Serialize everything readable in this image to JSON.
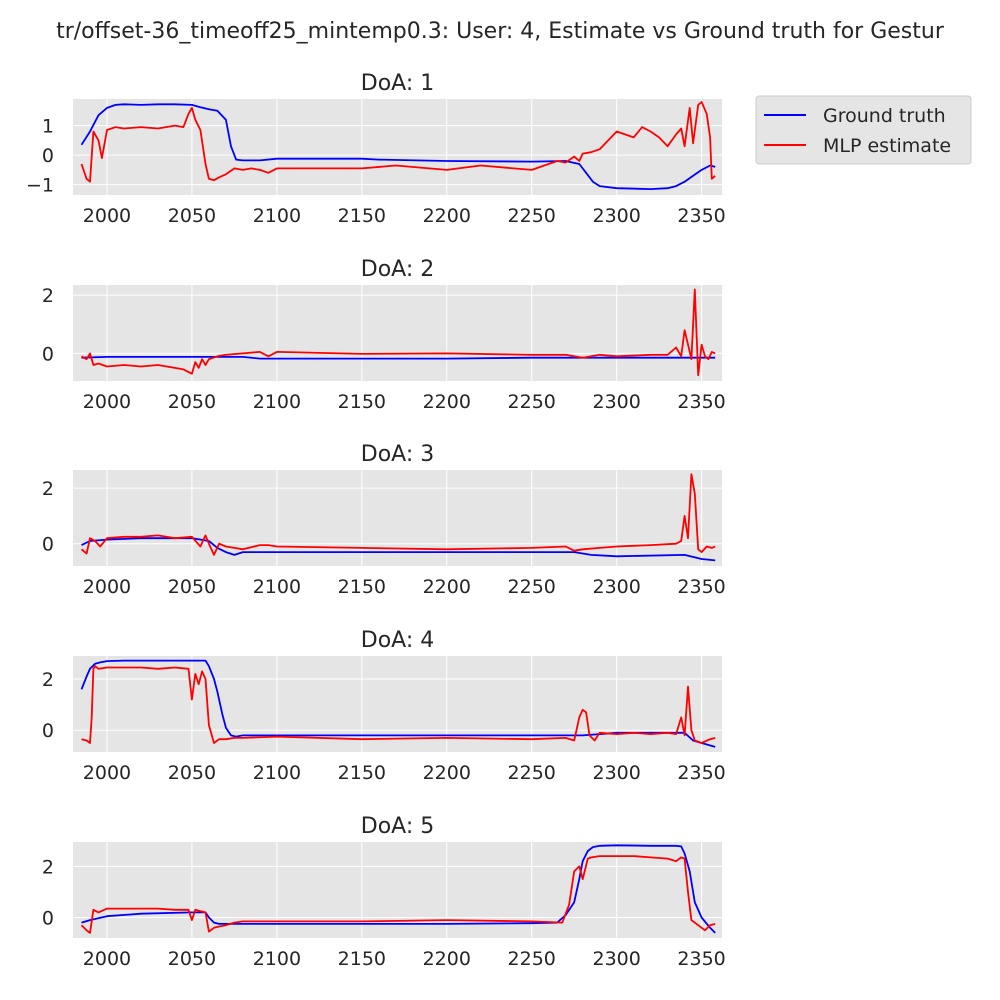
{
  "figure_title": "tr/offset-36_timeoff25_mintemp0.3: User: 4, Estimate vs Ground truth for Gestur",
  "legend": {
    "placement": "outside-right-top",
    "entries": [
      {
        "label": "Ground truth",
        "color": "#0000ff"
      },
      {
        "label": "MLP estimate",
        "color": "#ff0000"
      }
    ]
  },
  "style": {
    "axes_bg": "#e5e5e5",
    "grid": true,
    "grid_color": "#ffffff"
  },
  "chart_data": [
    {
      "type": "line",
      "title": "DoA: 1",
      "xlim": [
        1980,
        2362
      ],
      "ylim": [
        -1.35,
        1.9
      ],
      "xticks": [
        2000,
        2050,
        2100,
        2150,
        2200,
        2250,
        2300,
        2350
      ],
      "yticks": [
        1,
        0,
        -1
      ],
      "ytick_labels": [
        "1",
        "0",
        "−1"
      ],
      "series": [
        {
          "name": "Ground truth",
          "color": "#0000ff",
          "x": [
            1985,
            1990,
            1995,
            2000,
            2005,
            2010,
            2020,
            2030,
            2040,
            2050,
            2055,
            2060,
            2065,
            2070,
            2073,
            2076,
            2080,
            2090,
            2100,
            2150,
            2160,
            2200,
            2250,
            2270,
            2278,
            2282,
            2286,
            2290,
            2300,
            2320,
            2330,
            2335,
            2340,
            2345,
            2350,
            2355,
            2358
          ],
          "y": [
            0.35,
            0.8,
            1.35,
            1.6,
            1.7,
            1.72,
            1.7,
            1.72,
            1.72,
            1.7,
            1.62,
            1.55,
            1.5,
            1.2,
            0.3,
            -0.15,
            -0.18,
            -0.18,
            -0.12,
            -0.12,
            -0.15,
            -0.2,
            -0.22,
            -0.2,
            -0.3,
            -0.6,
            -0.9,
            -1.05,
            -1.12,
            -1.15,
            -1.12,
            -1.05,
            -0.9,
            -0.7,
            -0.5,
            -0.35,
            -0.4
          ]
        },
        {
          "name": "MLP estimate",
          "color": "#ff0000",
          "x": [
            1985,
            1988,
            1990,
            1992,
            1995,
            1997,
            2000,
            2005,
            2010,
            2020,
            2030,
            2040,
            2045,
            2048,
            2050,
            2052,
            2055,
            2058,
            2060,
            2063,
            2066,
            2070,
            2075,
            2080,
            2085,
            2090,
            2095,
            2100,
            2150,
            2170,
            2200,
            2220,
            2250,
            2265,
            2270,
            2275,
            2278,
            2280,
            2285,
            2290,
            2295,
            2300,
            2310,
            2315,
            2320,
            2325,
            2330,
            2335,
            2338,
            2340,
            2343,
            2345,
            2348,
            2350,
            2353,
            2355,
            2356,
            2358
          ],
          "y": [
            -0.3,
            -0.8,
            -0.9,
            0.8,
            0.5,
            -0.1,
            0.85,
            0.95,
            0.9,
            0.95,
            0.9,
            1.0,
            0.95,
            1.4,
            1.6,
            1.2,
            0.85,
            -0.3,
            -0.8,
            -0.85,
            -0.75,
            -0.65,
            -0.45,
            -0.5,
            -0.45,
            -0.5,
            -0.6,
            -0.45,
            -0.45,
            -0.35,
            -0.5,
            -0.35,
            -0.5,
            -0.2,
            -0.25,
            -0.05,
            -0.2,
            0.05,
            0.1,
            0.2,
            0.5,
            0.8,
            0.6,
            0.95,
            0.8,
            0.6,
            0.3,
            0.7,
            0.9,
            0.3,
            1.6,
            0.4,
            1.7,
            1.8,
            1.4,
            0.6,
            -0.8,
            -0.7
          ]
        }
      ]
    },
    {
      "type": "line",
      "title": "DoA: 2",
      "xlim": [
        1980,
        2362
      ],
      "ylim": [
        -0.95,
        2.35
      ],
      "xticks": [
        2000,
        2050,
        2100,
        2150,
        2200,
        2250,
        2300,
        2350
      ],
      "yticks": [
        2,
        0
      ],
      "ytick_labels": [
        "2",
        "0"
      ],
      "series": [
        {
          "name": "Ground truth",
          "color": "#0000ff",
          "x": [
            1985,
            2000,
            2050,
            2080,
            2090,
            2100,
            2200,
            2250,
            2300,
            2350,
            2358
          ],
          "y": [
            -0.15,
            -0.12,
            -0.12,
            -0.12,
            -0.18,
            -0.18,
            -0.18,
            -0.15,
            -0.15,
            -0.15,
            -0.15
          ]
        },
        {
          "name": "MLP estimate",
          "color": "#ff0000",
          "x": [
            1985,
            1988,
            1990,
            1992,
            1995,
            2000,
            2010,
            2020,
            2030,
            2040,
            2045,
            2050,
            2052,
            2054,
            2056,
            2058,
            2060,
            2065,
            2070,
            2080,
            2090,
            2095,
            2100,
            2150,
            2200,
            2250,
            2270,
            2280,
            2290,
            2300,
            2320,
            2330,
            2335,
            2338,
            2340,
            2342,
            2344,
            2346,
            2348,
            2350,
            2352,
            2354,
            2356,
            2358
          ],
          "y": [
            -0.1,
            -0.2,
            0.0,
            -0.4,
            -0.35,
            -0.45,
            -0.4,
            -0.45,
            -0.4,
            -0.5,
            -0.55,
            -0.7,
            -0.3,
            -0.5,
            -0.2,
            -0.4,
            -0.2,
            -0.1,
            -0.05,
            0.0,
            0.05,
            -0.1,
            0.05,
            -0.02,
            0.0,
            -0.05,
            -0.05,
            -0.15,
            -0.05,
            -0.1,
            -0.05,
            -0.05,
            0.2,
            -0.1,
            0.8,
            0.3,
            -0.2,
            2.2,
            -0.75,
            0.3,
            -0.1,
            -0.2,
            0.05,
            0.0
          ]
        }
      ]
    },
    {
      "type": "line",
      "title": "DoA: 3",
      "xlim": [
        1980,
        2362
      ],
      "ylim": [
        -0.8,
        2.65
      ],
      "xticks": [
        2000,
        2050,
        2100,
        2150,
        2200,
        2250,
        2300,
        2350
      ],
      "yticks": [
        2,
        0
      ],
      "ytick_labels": [
        "2",
        "0"
      ],
      "series": [
        {
          "name": "Ground truth",
          "color": "#0000ff",
          "x": [
            1985,
            1990,
            2000,
            2020,
            2050,
            2060,
            2065,
            2070,
            2075,
            2080,
            2100,
            2150,
            2200,
            2250,
            2275,
            2285,
            2300,
            2340,
            2350,
            2358
          ],
          "y": [
            -0.05,
            0.1,
            0.15,
            0.2,
            0.2,
            0.1,
            -0.15,
            -0.3,
            -0.4,
            -0.3,
            -0.3,
            -0.3,
            -0.3,
            -0.3,
            -0.3,
            -0.4,
            -0.45,
            -0.4,
            -0.55,
            -0.6
          ]
        },
        {
          "name": "MLP estimate",
          "color": "#ff0000",
          "x": [
            1985,
            1988,
            1990,
            1993,
            1996,
            2000,
            2010,
            2020,
            2030,
            2040,
            2050,
            2055,
            2058,
            2060,
            2063,
            2066,
            2070,
            2075,
            2080,
            2090,
            2095,
            2100,
            2150,
            2200,
            2250,
            2270,
            2275,
            2280,
            2290,
            2300,
            2320,
            2335,
            2338,
            2340,
            2342,
            2344,
            2346,
            2348,
            2350,
            2353,
            2356,
            2358
          ],
          "y": [
            -0.2,
            -0.35,
            0.2,
            0.1,
            -0.1,
            0.2,
            0.25,
            0.25,
            0.3,
            0.2,
            0.25,
            -0.1,
            0.3,
            0.0,
            -0.4,
            0.0,
            -0.1,
            -0.15,
            -0.2,
            -0.05,
            -0.05,
            -0.1,
            -0.15,
            -0.2,
            -0.15,
            -0.1,
            -0.25,
            -0.2,
            -0.15,
            -0.1,
            -0.05,
            0.0,
            0.1,
            1.0,
            0.2,
            2.5,
            1.8,
            -0.2,
            -0.3,
            -0.1,
            -0.15,
            -0.1
          ]
        }
      ]
    },
    {
      "type": "line",
      "title": "DoA: 4",
      "xlim": [
        1980,
        2362
      ],
      "ylim": [
        -0.85,
        2.9
      ],
      "xticks": [
        2000,
        2050,
        2100,
        2150,
        2200,
        2250,
        2300,
        2350
      ],
      "yticks": [
        2,
        0
      ],
      "ytick_labels": [
        "2",
        "0"
      ],
      "series": [
        {
          "name": "Ground truth",
          "color": "#0000ff",
          "x": [
            1985,
            1988,
            1990,
            1993,
            1996,
            2000,
            2010,
            2030,
            2050,
            2058,
            2060,
            2063,
            2065,
            2068,
            2070,
            2073,
            2076,
            2080,
            2100,
            2150,
            2200,
            2250,
            2270,
            2280,
            2290,
            2300,
            2320,
            2340,
            2345,
            2350,
            2358
          ],
          "y": [
            1.6,
            2.1,
            2.4,
            2.6,
            2.65,
            2.7,
            2.72,
            2.72,
            2.72,
            2.72,
            2.5,
            2.0,
            1.5,
            0.6,
            0.1,
            -0.2,
            -0.25,
            -0.2,
            -0.2,
            -0.2,
            -0.2,
            -0.2,
            -0.2,
            -0.2,
            -0.15,
            -0.1,
            -0.1,
            -0.1,
            -0.4,
            -0.5,
            -0.65
          ]
        },
        {
          "name": "MLP estimate",
          "color": "#ff0000",
          "x": [
            1985,
            1988,
            1990,
            1991,
            1992,
            1993,
            1995,
            2000,
            2010,
            2020,
            2030,
            2040,
            2048,
            2050,
            2052,
            2054,
            2056,
            2058,
            2060,
            2063,
            2066,
            2070,
            2075,
            2080,
            2100,
            2150,
            2200,
            2250,
            2270,
            2275,
            2278,
            2280,
            2282,
            2284,
            2287,
            2290,
            2300,
            2310,
            2320,
            2330,
            2335,
            2338,
            2340,
            2342,
            2344,
            2346,
            2350,
            2355,
            2358
          ],
          "y": [
            -0.35,
            -0.4,
            -0.5,
            0.5,
            2.4,
            2.5,
            2.4,
            2.45,
            2.45,
            2.45,
            2.4,
            2.45,
            2.4,
            1.2,
            2.2,
            1.8,
            2.3,
            2.0,
            0.2,
            -0.5,
            -0.35,
            -0.35,
            -0.3,
            -0.3,
            -0.25,
            -0.35,
            -0.3,
            -0.35,
            -0.3,
            -0.4,
            0.5,
            0.8,
            0.7,
            -0.2,
            -0.4,
            -0.1,
            -0.15,
            -0.1,
            -0.15,
            -0.1,
            -0.15,
            0.5,
            -0.2,
            1.7,
            0.0,
            -0.4,
            -0.5,
            -0.35,
            -0.3
          ]
        }
      ]
    },
    {
      "type": "line",
      "title": "DoA: 5",
      "xlim": [
        1980,
        2362
      ],
      "ylim": [
        -0.8,
        2.95
      ],
      "xticks": [
        2000,
        2050,
        2100,
        2150,
        2200,
        2250,
        2300,
        2350
      ],
      "yticks": [
        2,
        0
      ],
      "ytick_labels": [
        "2",
        "0"
      ],
      "series": [
        {
          "name": "Ground truth",
          "color": "#0000ff",
          "x": [
            1985,
            1990,
            2000,
            2020,
            2050,
            2058,
            2060,
            2063,
            2066,
            2070,
            2100,
            2150,
            2200,
            2250,
            2265,
            2270,
            2275,
            2278,
            2280,
            2283,
            2286,
            2290,
            2300,
            2320,
            2335,
            2338,
            2340,
            2343,
            2346,
            2350,
            2355,
            2358
          ],
          "y": [
            -0.2,
            -0.1,
            0.05,
            0.15,
            0.2,
            0.2,
            0.0,
            -0.2,
            -0.25,
            -0.25,
            -0.25,
            -0.25,
            -0.25,
            -0.22,
            -0.2,
            0.1,
            0.6,
            1.5,
            2.2,
            2.6,
            2.75,
            2.8,
            2.82,
            2.8,
            2.8,
            2.78,
            2.5,
            1.8,
            0.6,
            0.0,
            -0.4,
            -0.6
          ]
        },
        {
          "name": "MLP estimate",
          "color": "#ff0000",
          "x": [
            1985,
            1988,
            1990,
            1992,
            1995,
            2000,
            2010,
            2020,
            2030,
            2040,
            2048,
            2050,
            2052,
            2055,
            2058,
            2060,
            2063,
            2066,
            2070,
            2075,
            2080,
            2100,
            2150,
            2200,
            2250,
            2268,
            2272,
            2275,
            2278,
            2280,
            2283,
            2285,
            2290,
            2300,
            2310,
            2320,
            2330,
            2335,
            2338,
            2340,
            2342,
            2344,
            2348,
            2352,
            2355,
            2358
          ],
          "y": [
            -0.3,
            -0.5,
            -0.6,
            0.3,
            0.2,
            0.35,
            0.35,
            0.35,
            0.35,
            0.3,
            0.3,
            -0.1,
            0.3,
            0.25,
            0.2,
            -0.55,
            -0.4,
            -0.35,
            -0.3,
            -0.2,
            -0.15,
            -0.15,
            -0.15,
            -0.1,
            -0.15,
            -0.2,
            0.5,
            1.8,
            2.0,
            1.5,
            2.3,
            2.35,
            2.4,
            2.4,
            2.4,
            2.35,
            2.3,
            2.2,
            2.35,
            2.3,
            1.0,
            -0.1,
            -0.3,
            -0.5,
            -0.3,
            -0.25
          ]
        }
      ]
    }
  ]
}
